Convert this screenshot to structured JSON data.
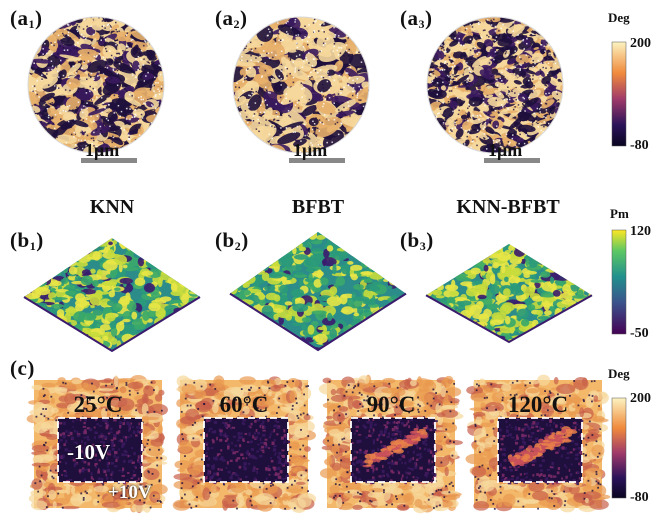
{
  "row_a": {
    "panels": [
      {
        "label": "a",
        "sub": "1",
        "sample": "KNN",
        "scale": "1μm"
      },
      {
        "label": "a",
        "sub": "2",
        "sample": "BFBT",
        "scale": "1μm"
      },
      {
        "label": "a",
        "sub": "3",
        "sample": "KNN-BFBT",
        "scale": "1μm"
      }
    ],
    "colorbar": {
      "title": "Deg",
      "max": "200",
      "min": "-80"
    }
  },
  "row_b": {
    "panels": [
      {
        "label": "b",
        "sub": "1"
      },
      {
        "label": "b",
        "sub": "2"
      },
      {
        "label": "b",
        "sub": "3"
      }
    ],
    "colorbar": {
      "title": "Pm",
      "max": "120",
      "min": "-50"
    }
  },
  "row_c": {
    "label": "c",
    "panels": [
      {
        "temp": "25°C",
        "inner_voltage": "-10V",
        "outer_voltage": "+10V"
      },
      {
        "temp": "60°C"
      },
      {
        "temp": "90°C"
      },
      {
        "temp": "120°C"
      }
    ],
    "colorbar": {
      "title": "Deg",
      "max": "200",
      "min": "-80"
    }
  },
  "colors": {
    "phase_dark": "#1e0f3c",
    "phase_mid": "#b4405a",
    "phase_light": "#f6d89c",
    "height_low": "#3b1c6e",
    "height_mid": "#2b8c8a",
    "height_high": "#e8e646"
  }
}
